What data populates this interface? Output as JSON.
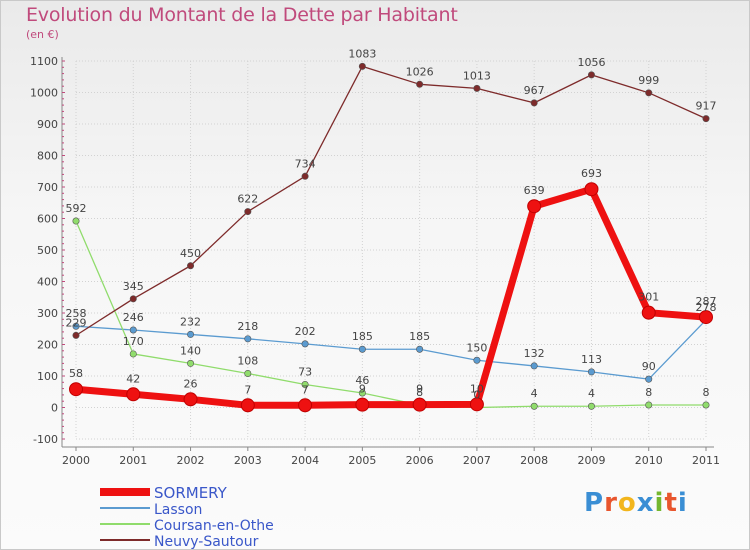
{
  "title": "Evolution du Montant de la Dette par Habitant",
  "subtitle": "(en €)",
  "logo": {
    "text": "Proxiti",
    "letter_colors": [
      "#3a8ed4",
      "#e8552d",
      "#f2b51c",
      "#3a8ed4",
      "#74b72e",
      "#e8552d",
      "#3a8ed4"
    ]
  },
  "chart_data": {
    "type": "line",
    "title": "Evolution du Montant de la Dette par Habitant",
    "subtitle": "(en €)",
    "x": [
      "2000",
      "2001",
      "2002",
      "2003",
      "2004",
      "2005",
      "2006",
      "2007",
      "2008",
      "2009",
      "2010",
      "2011"
    ],
    "ylim": [
      -100,
      1100
    ],
    "yticks": [
      -100,
      0,
      100,
      200,
      300,
      400,
      500,
      600,
      700,
      800,
      900,
      1000,
      1100
    ],
    "grid": true,
    "legend_position": "bottom-left",
    "series": [
      {
        "name": "SORMERY",
        "color": "#ee1111",
        "emphasis": true,
        "values": [
          58,
          42,
          26,
          7,
          7,
          9,
          9,
          10,
          639,
          693,
          301,
          287
        ]
      },
      {
        "name": "Lasson",
        "color": "#5b9bd0",
        "emphasis": false,
        "values": [
          258,
          246,
          232,
          218,
          202,
          185,
          185,
          150,
          132,
          113,
          90,
          278
        ]
      },
      {
        "name": "Coursan-en-Othe",
        "color": "#90dc6c",
        "emphasis": false,
        "values": [
          592,
          170,
          140,
          108,
          73,
          46,
          8,
          0,
          4,
          4,
          8,
          8
        ]
      },
      {
        "name": "Neuvy-Sautour",
        "color": "#7e2b2b",
        "emphasis": false,
        "values": [
          229,
          345,
          450,
          622,
          734,
          1083,
          1026,
          1013,
          967,
          1056,
          999,
          917
        ]
      }
    ],
    "data_labels": [
      {
        "series": "SORMERY",
        "labels": [
          "58",
          "42",
          "26",
          "7",
          "7",
          "9",
          "9",
          "10",
          "639",
          "693",
          "301",
          "287"
        ]
      },
      {
        "series": "Lasson",
        "labels": [
          "258",
          "246",
          "232",
          "218",
          "202",
          "185",
          "185",
          "150",
          "132",
          "113",
          "90",
          "278"
        ]
      },
      {
        "series": "Coursan-en-Othe",
        "labels": [
          "592",
          "170",
          "140",
          "108",
          "73",
          "46",
          "8",
          "0",
          "4",
          "4",
          "8",
          "8"
        ]
      },
      {
        "series": "Neuvy-Sautour",
        "labels": [
          "229",
          "345",
          "450",
          "622",
          "734",
          "1083",
          "1026",
          "1013",
          "967",
          "1056",
          "999",
          "917"
        ]
      }
    ]
  }
}
